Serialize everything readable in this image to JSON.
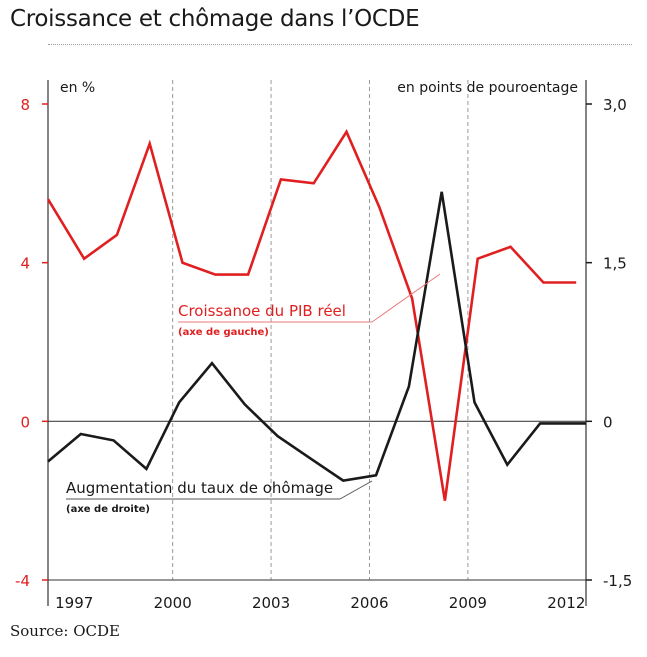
{
  "title": "Croissance et chômage dans l’OCDE",
  "source": "Source: OCDE",
  "chart_data": {
    "type": "line",
    "left_axis_label": "en %",
    "right_axis_label": "en points de pouroentage",
    "left_ylim": [
      -4,
      8
    ],
    "right_ylim": [
      -1.5,
      3.0
    ],
    "left_ticks": [
      "8",
      "4",
      "0",
      "-4"
    ],
    "right_ticks": [
      "3,0",
      "1,5",
      "0",
      "-1,5"
    ],
    "xlim": [
      1996.2,
      2012.6
    ],
    "x_tick_labels": [
      "1997",
      "2000",
      "2003",
      "2006",
      "2009",
      "2012"
    ],
    "x_tick_values": [
      1997,
      2000,
      2003,
      2006,
      2009,
      2012
    ],
    "gridlines_x": [
      2000,
      2003,
      2006,
      2009
    ],
    "grid": "vertical dashed",
    "series": [
      {
        "name": "Croissanoe du PIB réel",
        "note": "(axe de gauche)",
        "axis": "left",
        "color": "#e02020",
        "x": [
          1996.2,
          1997.3,
          1998.3,
          1999.3,
          2000.3,
          2001.3,
          2002.3,
          2003.3,
          2004.3,
          2005.3,
          2006.3,
          2007.3,
          2008.3,
          2009.3,
          2010.3,
          2011.3,
          2012.3
        ],
        "values": [
          5.6,
          4.1,
          4.7,
          7.0,
          4.0,
          3.7,
          3.7,
          6.1,
          6.0,
          7.3,
          5.4,
          3.1,
          -2.0,
          4.1,
          4.4,
          3.5,
          3.5
        ]
      },
      {
        "name": "Augmentation du taux de ohômage",
        "note": "(axe de droite)",
        "axis": "right",
        "color": "#1a1a1a",
        "x": [
          1996.2,
          1997.2,
          1998.2,
          1999.2,
          2000.2,
          2001.2,
          2002.2,
          2003.2,
          2004.2,
          2005.2,
          2006.2,
          2007.2,
          2008.2,
          2009.2,
          2010.2,
          2011.2,
          2012.6
        ],
        "values": [
          -0.38,
          -0.12,
          -0.18,
          -0.45,
          0.18,
          0.55,
          0.16,
          -0.14,
          -0.35,
          -0.56,
          -0.51,
          0.33,
          2.17,
          0.18,
          -0.41,
          -0.02,
          -0.02
        ]
      }
    ],
    "zero_line": true,
    "colors": {
      "growth": "#e02020",
      "unemployment": "#1a1a1a",
      "left_ticks": "#e02020",
      "right_ticks": "#1a1a1a",
      "annotation_line": "#e87a7a"
    }
  }
}
